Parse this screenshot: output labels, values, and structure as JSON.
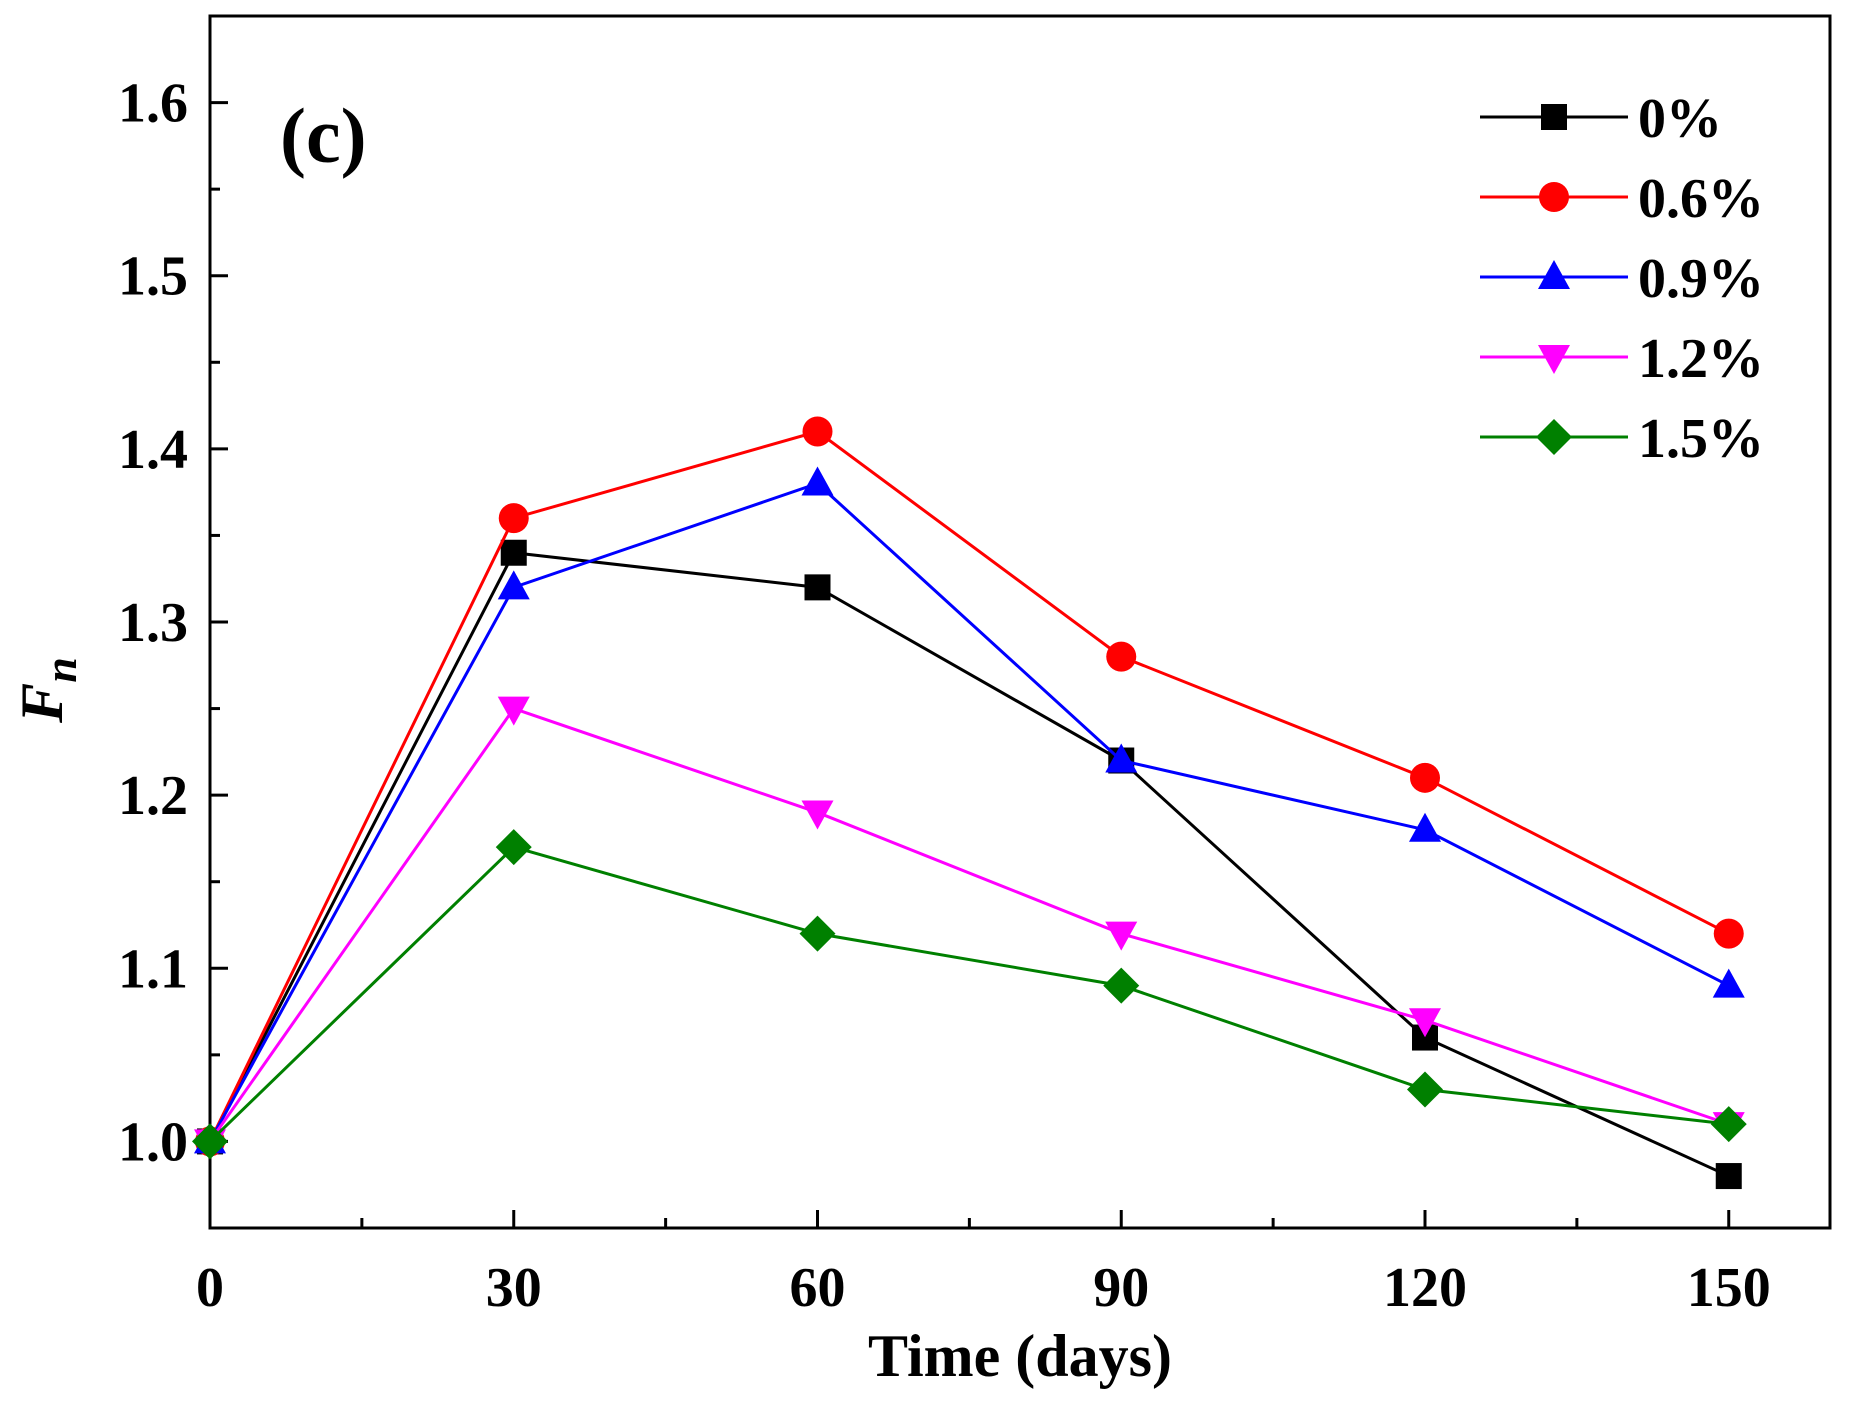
{
  "chart_data": {
    "type": "line",
    "panel_label": "(c)",
    "title": "",
    "xlabel": "Time (days)",
    "ylabel": "F",
    "ylabel_subscript": "n",
    "x": [
      0,
      30,
      60,
      90,
      120,
      150
    ],
    "xlim": [
      0,
      160
    ],
    "ylim": [
      0.95,
      1.65
    ],
    "x_ticks": [
      0,
      30,
      60,
      90,
      120,
      150
    ],
    "x_tick_labels": [
      "0",
      "30",
      "60",
      "90",
      "120",
      "150"
    ],
    "y_ticks": [
      1.0,
      1.1,
      1.2,
      1.3,
      1.4,
      1.5,
      1.6
    ],
    "y_tick_labels": [
      "1.0",
      "1.1",
      "1.2",
      "1.3",
      "1.4",
      "1.5",
      "1.6"
    ],
    "grid": false,
    "legend_position": "top-right",
    "series": [
      {
        "name": "0%",
        "color": "#000000",
        "marker": "square",
        "values": [
          1.0,
          1.34,
          1.32,
          1.22,
          1.06,
          0.98
        ]
      },
      {
        "name": "0.6%",
        "color": "#ff0000",
        "marker": "circle",
        "values": [
          1.0,
          1.36,
          1.41,
          1.28,
          1.21,
          1.12
        ]
      },
      {
        "name": "0.9%",
        "color": "#0000ff",
        "marker": "triangle-up",
        "values": [
          1.0,
          1.32,
          1.38,
          1.22,
          1.18,
          1.09
        ]
      },
      {
        "name": "1.2%",
        "color": "#ff00ff",
        "marker": "triangle-down",
        "values": [
          1.0,
          1.25,
          1.19,
          1.12,
          1.07,
          1.01
        ]
      },
      {
        "name": "1.5%",
        "color": "#008000",
        "marker": "diamond",
        "values": [
          1.0,
          1.17,
          1.12,
          1.09,
          1.03,
          1.01
        ]
      }
    ]
  }
}
